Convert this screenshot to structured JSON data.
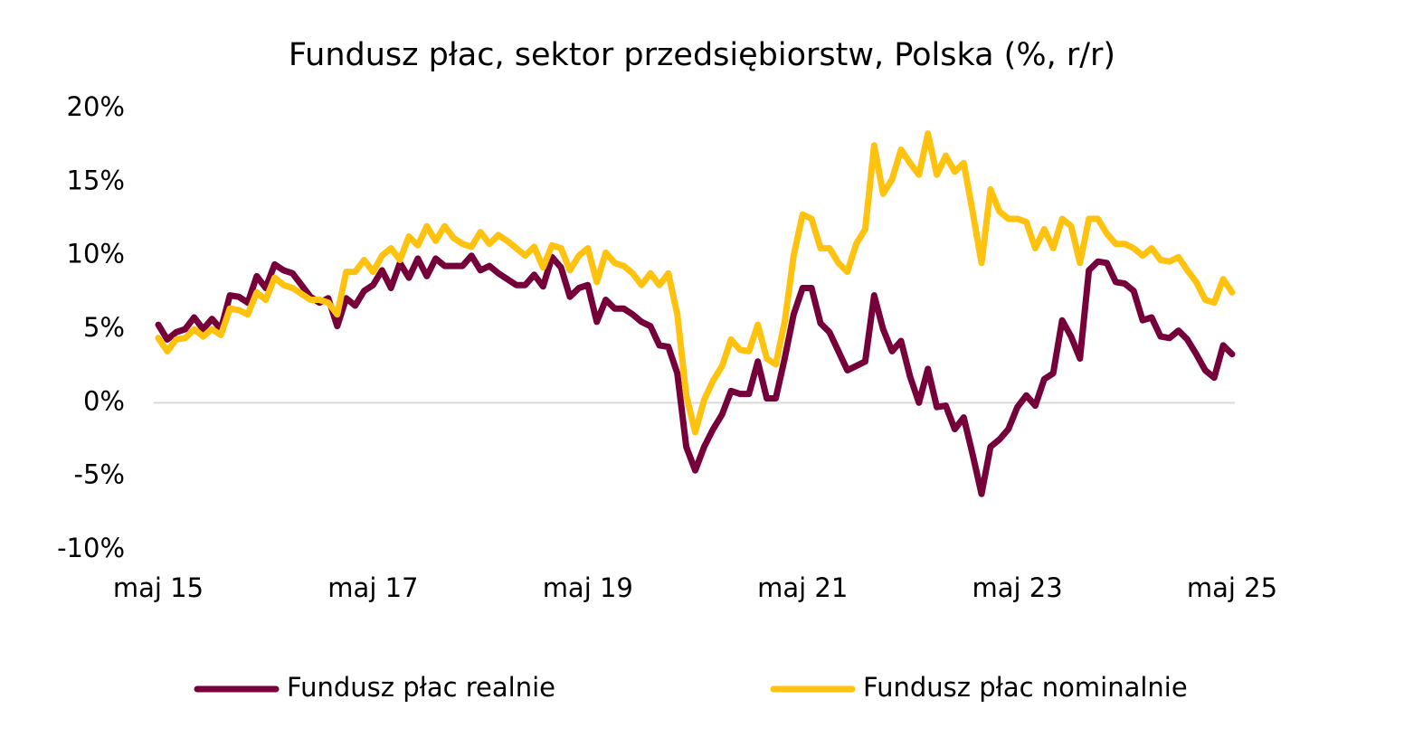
{
  "chart_data": {
    "type": "line",
    "title": "Fundusz płac, sektor przedsiębiorstw, Polska (%, r/r)",
    "categories": [
      "maj 15",
      null,
      null,
      null,
      null,
      null,
      null,
      null,
      null,
      null,
      null,
      null,
      null,
      null,
      null,
      null,
      null,
      null,
      null,
      null,
      null,
      null,
      null,
      null,
      "maj 17",
      null,
      null,
      null,
      null,
      null,
      null,
      null,
      null,
      null,
      null,
      null,
      null,
      null,
      null,
      null,
      null,
      null,
      null,
      null,
      null,
      null,
      null,
      null,
      "maj 19",
      null,
      null,
      null,
      null,
      null,
      null,
      null,
      null,
      null,
      null,
      null,
      null,
      null,
      null,
      null,
      null,
      null,
      null,
      null,
      null,
      null,
      null,
      null,
      "maj 21",
      null,
      null,
      null,
      null,
      null,
      null,
      null,
      null,
      null,
      null,
      null,
      null,
      null,
      null,
      null,
      null,
      null,
      null,
      null,
      null,
      null,
      null,
      null,
      "maj 23",
      null,
      null,
      null,
      null,
      null,
      null,
      null,
      null,
      null,
      null,
      null,
      null,
      null,
      null,
      null,
      null,
      null,
      null,
      null,
      null,
      null,
      null,
      null,
      "maj 25"
    ],
    "series": [
      {
        "name": "Fundusz płac realnie",
        "color": "#76003a",
        "values": [
          5.3,
          4.3,
          4.8,
          5.0,
          5.8,
          5.0,
          5.7,
          5.0,
          7.3,
          7.2,
          6.8,
          8.6,
          7.8,
          9.4,
          9.0,
          8.8,
          8.0,
          7.2,
          6.8,
          7.1,
          5.2,
          7.1,
          6.6,
          7.6,
          8.0,
          9.0,
          7.8,
          9.5,
          8.5,
          9.8,
          8.6,
          9.8,
          9.3,
          9.3,
          9.3,
          10.0,
          9.0,
          9.3,
          8.8,
          8.4,
          8.0,
          8.0,
          8.7,
          7.9,
          9.9,
          9.2,
          7.2,
          7.8,
          8.0,
          5.5,
          7.0,
          6.4,
          6.4,
          6.0,
          5.5,
          5.2,
          3.9,
          3.8,
          2.0,
          -3.0,
          -4.6,
          -3.0,
          -1.8,
          -0.8,
          0.8,
          0.6,
          0.6,
          2.8,
          0.3,
          0.3,
          3.0,
          6.0,
          7.8,
          7.8,
          5.4,
          4.8,
          3.5,
          2.2,
          2.5,
          2.8,
          7.3,
          5.0,
          3.5,
          4.2,
          1.8,
          0.0,
          2.3,
          -0.3,
          -0.2,
          -1.8,
          -1.0,
          -3.5,
          -6.2,
          -3.0,
          -2.5,
          -1.8,
          -0.3,
          0.5,
          -0.2,
          1.6,
          2.0,
          5.6,
          4.5,
          3.0,
          9.0,
          9.6,
          9.5,
          8.2,
          8.1,
          7.6,
          5.6,
          5.8,
          4.5,
          4.4,
          4.9,
          4.3,
          3.3,
          2.2,
          1.7,
          3.9,
          3.3
        ]
      },
      {
        "name": "Fundusz płac nominalnie",
        "color": "#ffc20e",
        "values": [
          4.4,
          3.5,
          4.3,
          4.4,
          5.0,
          4.5,
          5.0,
          4.6,
          6.4,
          6.3,
          6.0,
          7.5,
          7.0,
          8.5,
          8.0,
          7.8,
          7.4,
          7.0,
          7.0,
          6.8,
          6.0,
          8.9,
          8.9,
          9.7,
          8.9,
          10.0,
          10.5,
          9.7,
          11.3,
          10.7,
          12.0,
          11.0,
          12.0,
          11.2,
          10.8,
          10.6,
          11.6,
          10.8,
          11.4,
          11.0,
          10.5,
          10.0,
          10.6,
          9.2,
          10.7,
          10.5,
          9.0,
          10.0,
          10.5,
          8.2,
          10.2,
          9.5,
          9.3,
          8.8,
          8.0,
          8.8,
          8.0,
          8.8,
          6.0,
          0.5,
          -2.0,
          0.2,
          1.5,
          2.5,
          4.3,
          3.6,
          3.5,
          5.3,
          3.0,
          2.6,
          5.5,
          10.0,
          12.8,
          12.5,
          10.5,
          10.5,
          9.5,
          8.9,
          10.8,
          11.8,
          17.5,
          14.2,
          15.2,
          17.2,
          16.3,
          15.5,
          18.3,
          15.5,
          16.8,
          15.7,
          16.3,
          13.0,
          9.5,
          14.5,
          13.0,
          12.5,
          12.5,
          12.3,
          10.5,
          11.8,
          10.5,
          12.5,
          12.0,
          9.5,
          12.5,
          12.5,
          11.5,
          10.8,
          10.8,
          10.5,
          10.0,
          10.5,
          9.7,
          9.6,
          9.9,
          9.0,
          8.2,
          7.0,
          6.8,
          8.4,
          7.5
        ]
      }
    ],
    "ylim": [
      -10,
      20
    ],
    "yticks": [
      {
        "value": -10,
        "label": "-10%"
      },
      {
        "value": -5,
        "label": "-5%"
      },
      {
        "value": 0,
        "label": "0%"
      },
      {
        "value": 5,
        "label": "5%"
      },
      {
        "value": 10,
        "label": "10%"
      },
      {
        "value": 15,
        "label": "15%"
      },
      {
        "value": 20,
        "label": "20%"
      }
    ],
    "legend": "bottom"
  }
}
